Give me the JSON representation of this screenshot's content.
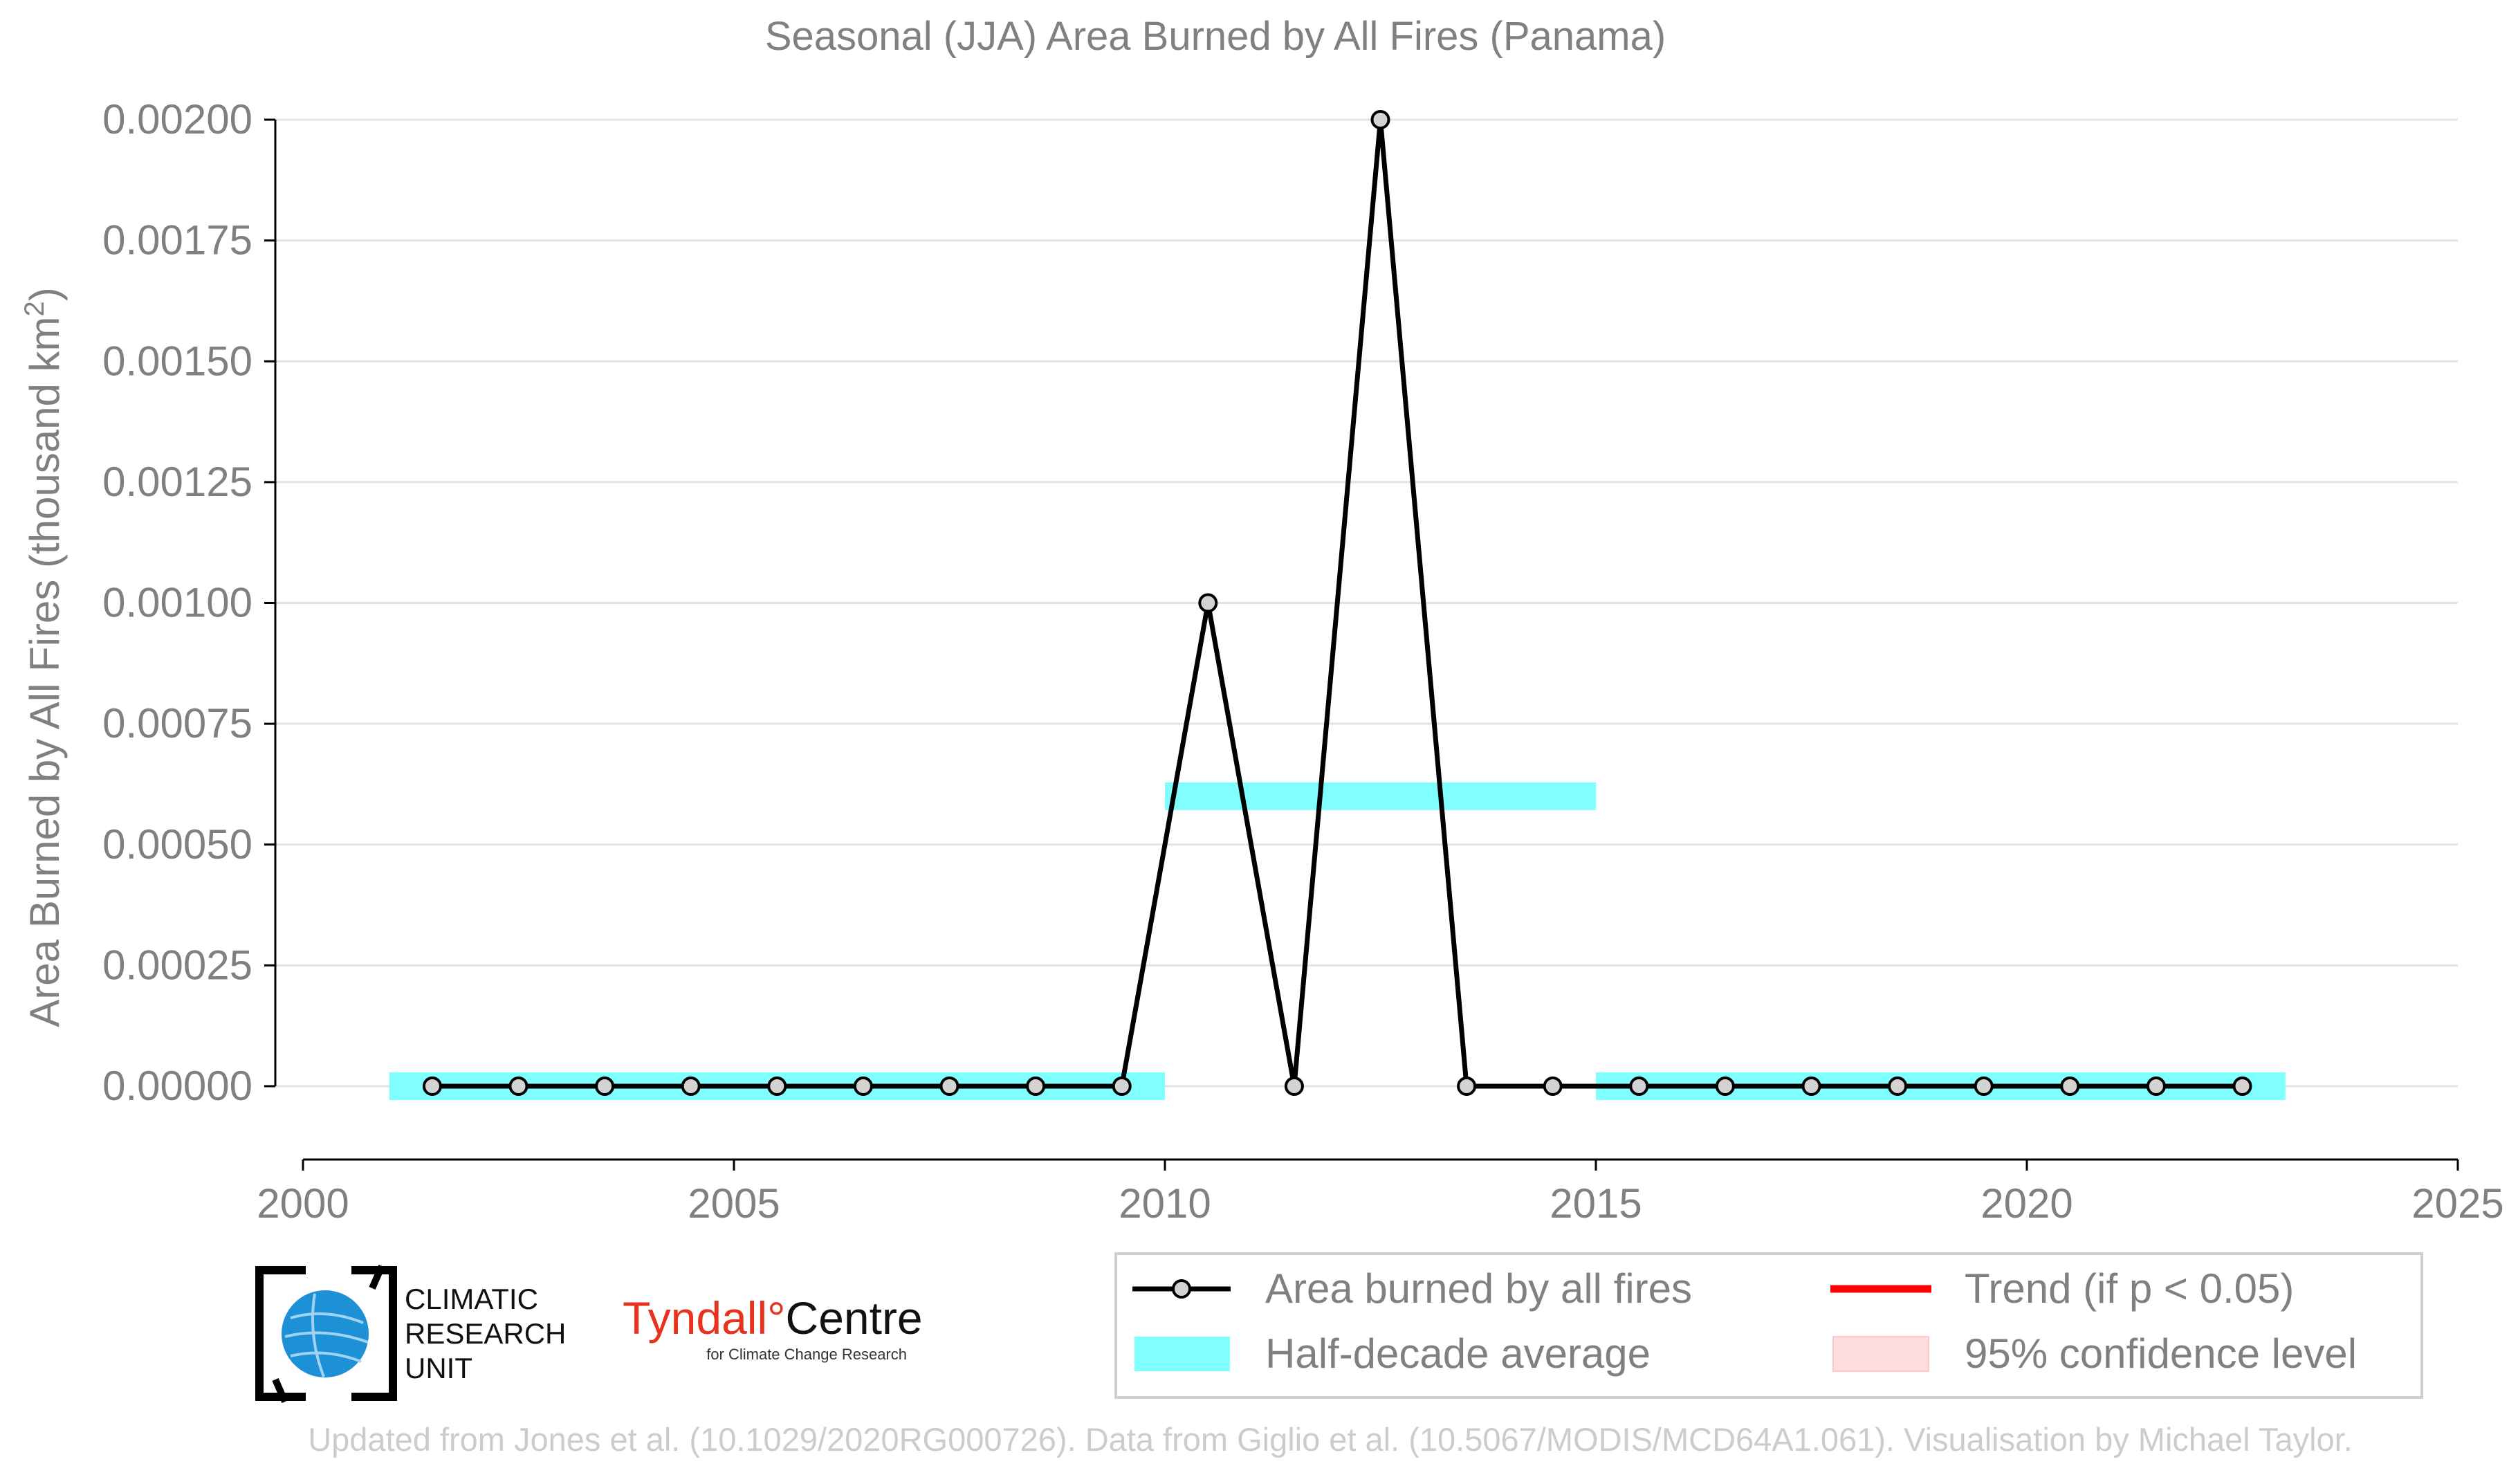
{
  "chart_data": {
    "type": "line",
    "title": "Seasonal (JJA) Area Burned by All Fires (Panama)",
    "ylabel": "Area Burned by All Fires (thousand km",
    "ylabel_sup": "2",
    "ylabel_close": ")",
    "xlabel": "",
    "xlim": [
      2000,
      2025
    ],
    "ylim": [
      -0.00015,
      0.00203
    ],
    "x_ticks": [
      2000,
      2005,
      2010,
      2015,
      2020,
      2025
    ],
    "x_tick_labels": [
      "2000",
      "2005",
      "2010",
      "2015",
      "2020",
      "2025"
    ],
    "y_ticks": [
      0,
      0.00025,
      0.0005,
      0.00075,
      0.001,
      0.00125,
      0.0015,
      0.00175,
      0.002
    ],
    "y_tick_labels": [
      "0.00000",
      "0.00025",
      "0.00050",
      "0.00075",
      "0.00100",
      "0.00125",
      "0.00150",
      "0.00175",
      "0.00200"
    ],
    "grid": "horizontal",
    "legend_position": "bottom-right",
    "series": [
      {
        "name": "Area burned by all fires",
        "color": "#000000",
        "marker_fill": "#d3d3d3",
        "x": [
          2001.5,
          2002.5,
          2003.5,
          2004.5,
          2005.5,
          2006.5,
          2007.5,
          2008.5,
          2009.5,
          2010.5,
          2011.5,
          2012.5,
          2013.5,
          2014.5,
          2015.5,
          2016.5,
          2017.5,
          2018.5,
          2019.5,
          2020.5,
          2021.5,
          2022.5
        ],
        "y": [
          0,
          0,
          0,
          0,
          0,
          0,
          0,
          0,
          0,
          0.001,
          0,
          0.002,
          0,
          0,
          0,
          0,
          0,
          0,
          0,
          0,
          0,
          0
        ]
      }
    ],
    "half_decade_average": {
      "name": "Half-decade average",
      "color": "#7fffff",
      "segments": [
        {
          "x_start": 2001,
          "x_end": 2010,
          "value": 0
        },
        {
          "x_start": 2010,
          "x_end": 2015,
          "value": 0.0006
        },
        {
          "x_start": 2015,
          "x_end": 2023,
          "value": 0
        }
      ]
    },
    "legend": [
      {
        "label": "Area burned by all fires",
        "kind": "line-marker",
        "color": "#000000"
      },
      {
        "label": "Trend (if p < 0.05)",
        "kind": "line",
        "color": "#ff0000"
      },
      {
        "label": "Half-decade average",
        "kind": "band",
        "color": "#7fffff"
      },
      {
        "label": "95% confidence level",
        "kind": "box",
        "color": "#ffdddd"
      }
    ],
    "colors": {
      "text": "#808080",
      "grid": "#e3e3e3",
      "axis": "#000000",
      "footer": "#cccccc",
      "tyndall_red": "#e8321e",
      "cru_blue": "#1e90d6"
    }
  },
  "logos": {
    "cru_lines": [
      "CLIMATIC",
      "RESEARCH",
      "UNIT"
    ],
    "tyndall_name": "Tyndall",
    "tyndall_degree": "°",
    "tyndall_centre": "Centre",
    "tyndall_sub": "for Climate Change Research"
  },
  "footer": "Updated from Jones et al. (10.1029/2020RG000726). Data from Giglio et al. (10.5067/MODIS/MCD64A1.061). Visualisation by Michael Taylor."
}
